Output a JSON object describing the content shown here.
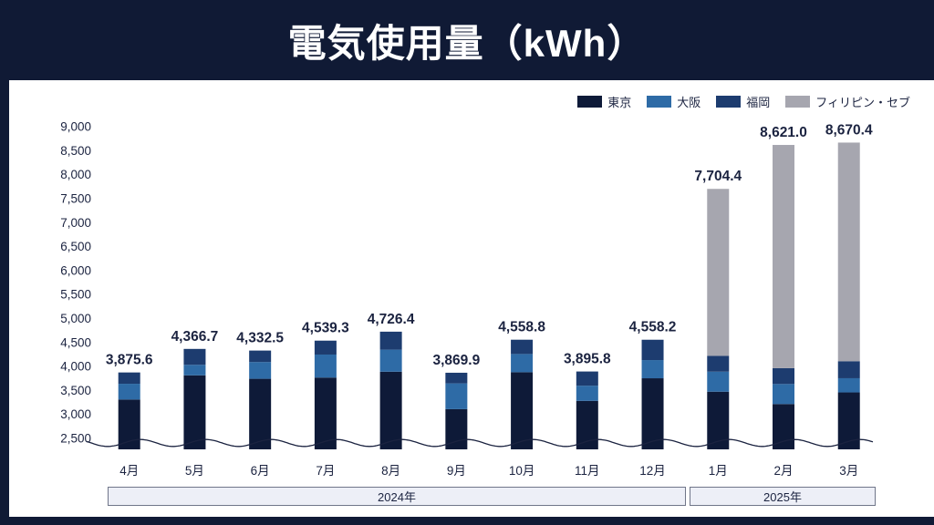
{
  "header": {
    "title": "電気使用量（kWh）"
  },
  "legend": [
    {
      "label": "東京",
      "color": "#0e1a38"
    },
    {
      "label": "大阪",
      "color": "#2e6ba6"
    },
    {
      "label": "福岡",
      "color": "#1d3c6f"
    },
    {
      "label": "フィリピン・セブ",
      "color": "#a6a6af"
    }
  ],
  "chart_data": {
    "type": "bar",
    "stacked": true,
    "title": "電気使用量（kWh）",
    "categories": [
      "4月",
      "5月",
      "6月",
      "7月",
      "8月",
      "9月",
      "10月",
      "11月",
      "12月",
      "1月",
      "2月",
      "3月"
    ],
    "series": [
      {
        "name": "東京",
        "color": "#0e1a38",
        "values": [
          3310.6,
          3815.7,
          3743.5,
          3769.3,
          3891.4,
          3109.9,
          3880.8,
          3282.8,
          3754.2,
          3474.4,
          3217.0,
          3459.4
        ]
      },
      {
        "name": "大阪",
        "color": "#2e6ba6",
        "values": [
          329,
          220,
          350,
          480,
          460,
          538,
          380,
          317,
          380,
          418,
          418,
          296
        ]
      },
      {
        "name": "福岡",
        "color": "#1d3c6f",
        "values": [
          236,
          331,
          239,
          290,
          375,
          222,
          298,
          296,
          424,
          329,
          331,
          355
        ]
      },
      {
        "name": "フィリピン・セブ",
        "color": "#a6a6af",
        "values": [
          0,
          0,
          0,
          0,
          0,
          0,
          0,
          0,
          0,
          3483,
          4655,
          4560
        ]
      }
    ],
    "totals": [
      "3,875.6",
      "4,366.7",
      "4,332.5",
      "4,539.3",
      "4,726.4",
      "3,869.9",
      "4,558.8",
      "3,895.8",
      "4,558.2",
      "7,704.4",
      "8,621.0",
      "8,670.4"
    ],
    "total_values": [
      3875.6,
      4366.7,
      4332.5,
      4539.3,
      4726.4,
      3869.9,
      4558.8,
      3895.8,
      4558.2,
      7704.4,
      8621.0,
      8670.4
    ],
    "yticks": [
      "9,000",
      "8,500",
      "8,000",
      "7,500",
      "7,000",
      "6,500",
      "6,000",
      "5,500",
      "5,000",
      "4,500",
      "4,000",
      "3,500",
      "3,000",
      "2,500"
    ],
    "ytick_values": [
      9000,
      8500,
      8000,
      7500,
      7000,
      6500,
      6000,
      5500,
      5000,
      4500,
      4000,
      3500,
      3000,
      2500
    ],
    "ylim": [
      2500,
      9000
    ],
    "axis_break_at": 2500,
    "grid": false,
    "legend_position": "top-right",
    "text_color": "#1b2340"
  },
  "x_axis_groups": [
    {
      "label": "2024年",
      "from": "4月",
      "to": "12月"
    },
    {
      "label": "2025年",
      "from": "1月",
      "to": "3月"
    }
  ]
}
